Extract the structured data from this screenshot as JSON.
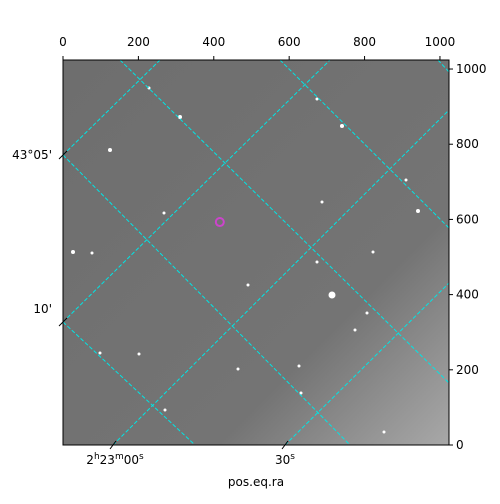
{
  "chart_data": {
    "type": "image",
    "xlabel": "pos.eq.ra",
    "xlim": [
      0,
      1024
    ],
    "ylim": [
      0,
      1024
    ],
    "xticks": [
      0,
      200,
      400,
      600,
      800,
      1000
    ],
    "yticks": [
      0,
      200,
      400,
      600,
      800,
      1000
    ],
    "dec_labels": [
      "43°05'",
      "10'"
    ],
    "ra_labels": [
      [
        "2",
        "h",
        "23",
        "m",
        "00",
        "s"
      ],
      [
        "30",
        "s"
      ]
    ],
    "marker": {
      "x": 416,
      "y": 593,
      "color": "#cc44cc"
    }
  }
}
